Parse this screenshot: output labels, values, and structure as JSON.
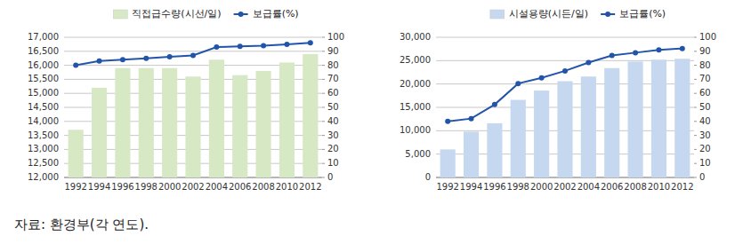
{
  "chart_data": [
    {
      "type": "bar",
      "categories": [
        "1992",
        "1994",
        "1996",
        "1998",
        "2000",
        "2002",
        "2004",
        "2006",
        "2008",
        "2010",
        "2012"
      ],
      "series": [
        {
          "name": "직접급수량(시선/일)",
          "type": "bar",
          "color": "#d6e8c4",
          "values": [
            13700,
            15200,
            15900,
            15900,
            15900,
            15600,
            16200,
            15650,
            15800,
            16100,
            16400
          ]
        },
        {
          "name": "보급률(%)",
          "type": "line",
          "color": "#2255aa",
          "axis": "y2",
          "marker": "circle",
          "values": [
            80,
            83,
            84,
            85,
            86,
            87,
            93,
            93.5,
            94,
            95,
            96
          ]
        }
      ],
      "ylim": [
        12000,
        17000
      ],
      "yticks": [
        {
          "value": 12000,
          "label": "12,000"
        },
        {
          "value": 12500,
          "label": "12,500"
        },
        {
          "value": 13000,
          "label": "13,000"
        },
        {
          "value": 13500,
          "label": "13,500"
        },
        {
          "value": 14000,
          "label": "14,000"
        },
        {
          "value": 14500,
          "label": "14,500"
        },
        {
          "value": 15000,
          "label": "15,000"
        },
        {
          "value": 15500,
          "label": "15,500"
        },
        {
          "value": 16000,
          "label": "16,000"
        },
        {
          "value": 16500,
          "label": "16,500"
        },
        {
          "value": 17000,
          "label": "17,000"
        }
      ],
      "y2lim": [
        0,
        100
      ],
      "y2ticks": [
        0,
        10,
        20,
        30,
        40,
        50,
        60,
        70,
        80,
        90,
        100
      ],
      "grid": true,
      "legend": "top",
      "annotations": [
        "자료:  환경부(각 연도)."
      ]
    },
    {
      "type": "bar",
      "categories": [
        "1992",
        "1994",
        "1996",
        "1998",
        "2000",
        "2002",
        "2004",
        "2006",
        "2008",
        "2010",
        "2012"
      ],
      "series": [
        {
          "name": "시설용량(시든/일)",
          "type": "bar",
          "color": "#c5d8f0",
          "values": [
            6000,
            9800,
            11600,
            16600,
            18600,
            20600,
            21600,
            23400,
            24800,
            25200,
            25400
          ]
        },
        {
          "name": "보급률(%)",
          "type": "line",
          "color": "#2255aa",
          "axis": "y2",
          "marker": "circle",
          "values": [
            40,
            42,
            52,
            67,
            71,
            76,
            82,
            87,
            89,
            91,
            92
          ]
        }
      ],
      "ylim": [
        0,
        30000
      ],
      "yticks": [
        0,
        {
          "value": 5000,
          "label": "5,000"
        },
        {
          "value": 10000,
          "label": "10,000"
        },
        {
          "value": 15000,
          "label": "15,000"
        },
        {
          "value": 20000,
          "label": "20,000"
        },
        {
          "value": 25000,
          "label": "25,000"
        },
        {
          "value": 30000,
          "label": "30,000"
        }
      ],
      "y2lim": [
        0,
        100
      ],
      "y2ticks": [
        0,
        10,
        20,
        30,
        40,
        50,
        60,
        70,
        80,
        90,
        100
      ],
      "grid": true,
      "legend": "top"
    }
  ]
}
